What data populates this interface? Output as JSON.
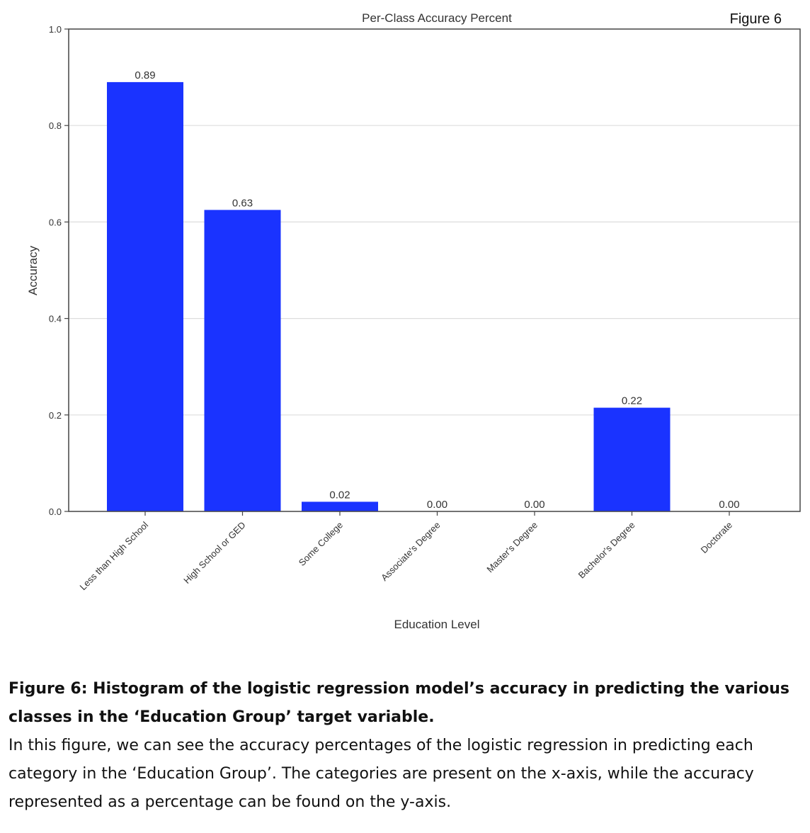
{
  "figure_tag": "Figure 6",
  "chart_data": {
    "type": "bar",
    "title": "Per-Class Accuracy Percent",
    "xlabel": "Education Level",
    "ylabel": "Accuracy",
    "ylim": [
      0,
      1.0
    ],
    "yticks": [
      "0.0",
      "0.2",
      "0.4",
      "0.6",
      "0.8",
      "1.0"
    ],
    "grid": "horizontal",
    "categories": [
      "Less than High School",
      "High School or GED",
      "Some College",
      "Associate's Degree",
      "Master's Degree",
      "Bachelor's Degree",
      "Doctorate"
    ],
    "values": [
      0.89,
      0.625,
      0.02,
      0.0,
      0.0,
      0.215,
      0.0
    ],
    "data_labels": [
      "0.89",
      "0.63",
      "0.02",
      "0.00",
      "0.00",
      "0.22",
      "0.00"
    ],
    "bar_color": "#1a33ff"
  },
  "caption": {
    "title": "Figure 6: Histogram of the logistic regression model’s accuracy in predicting the various classes in the ‘Education Group’ target variable.",
    "body": "In this figure, we can see the accuracy percentages of the logistic regression in predicting each category in the ‘Education Group’. The categories are present on the x-axis, while the accuracy represented as a percentage can be found on the y-axis."
  }
}
